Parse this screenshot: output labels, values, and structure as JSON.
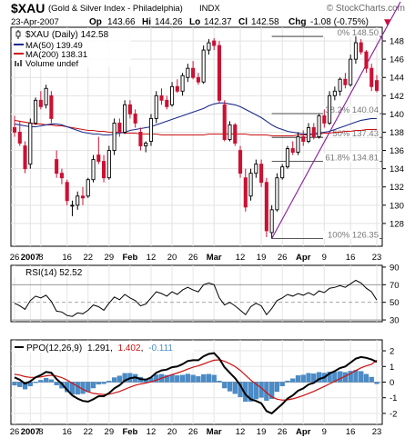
{
  "header": {
    "symbol": "$XAU",
    "name": "(Gold & Silver Index - Philadelphia)",
    "exchange": "INDX",
    "source": "© StockCharts.com",
    "date": "23-Apr-2007",
    "op_label": "Op",
    "op": "143.66",
    "hi_label": "Hi",
    "hi": "144.26",
    "lo_label": "Lo",
    "lo": "142.37",
    "cl_label": "Cl",
    "cl": "142.58",
    "chg_label": "Chg",
    "chg": "-1.08 (-0.75%)",
    "chg_arrow": "▼"
  },
  "legend": {
    "price": "$XAU (Daily) 142.58",
    "ma50": "MA(50) 139.49",
    "ma200": "MA(200) 138.31",
    "volume": "Volume undef"
  },
  "colors": {
    "up": "#000000",
    "down": "#cc1133",
    "ma50": "#1a2a8c",
    "ma200": "#cc1111",
    "fib": "#222222",
    "trend": "#8a1a9a",
    "hist": "#4a8cc8",
    "rsi": "#000000"
  },
  "fibonacci": {
    "levels": [
      {
        "label": "0% 148.50",
        "value": 148.5
      },
      {
        "label": "38.2% 140.04",
        "value": 140.04
      },
      {
        "label": "50% 137.43",
        "value": 137.43
      },
      {
        "label": "61.8% 134.81",
        "value": 134.81
      },
      {
        "label": "100% 126.35",
        "value": 126.35
      }
    ]
  },
  "x_axis": {
    "labels": [
      "26",
      "2007",
      "8",
      "16",
      "22",
      "29",
      "Feb",
      "12",
      "20",
      "26",
      "Mar",
      "12",
      "19",
      "26",
      "Apr",
      "9",
      "16",
      "23"
    ]
  },
  "chart_data": [
    {
      "type": "candlestick",
      "title": "$XAU (Daily)",
      "ylim": [
        125.5,
        149.5
      ],
      "y_ticks": [
        128,
        130,
        132,
        134,
        136,
        138,
        140,
        142,
        144,
        146,
        148
      ],
      "x_ticks": [
        "26",
        "2007",
        "8",
        "16",
        "22",
        "29",
        "Feb",
        "12",
        "20",
        "26",
        "Mar",
        "12",
        "19",
        "26",
        "Apr",
        "9",
        "16",
        "23"
      ],
      "grid": true,
      "legend": "top-left",
      "ohlc": [
        [
          138.5,
          139.8,
          137.5,
          138.0
        ],
        [
          138.0,
          139.2,
          136.5,
          136.8
        ],
        [
          136.5,
          137.0,
          133.5,
          134.0
        ],
        [
          134.5,
          139.5,
          134.0,
          139.0
        ],
        [
          139.0,
          141.8,
          138.8,
          141.5
        ],
        [
          141.5,
          142.5,
          140.5,
          140.8
        ],
        [
          141.0,
          143.2,
          140.6,
          142.8
        ],
        [
          142.0,
          142.5,
          139.0,
          139.5
        ],
        [
          135.0,
          136.0,
          133.0,
          133.5
        ],
        [
          133.5,
          134.0,
          132.3,
          133.0
        ],
        [
          132.5,
          132.8,
          130.0,
          130.5
        ],
        [
          130.0,
          130.5,
          128.8,
          130.0
        ],
        [
          130.0,
          131.5,
          129.5,
          131.0
        ],
        [
          131.0,
          132.0,
          130.0,
          130.8
        ],
        [
          131.0,
          133.0,
          130.8,
          132.8
        ],
        [
          132.8,
          135.5,
          132.5,
          135.0
        ],
        [
          135.5,
          137.5,
          134.5,
          134.8
        ],
        [
          134.8,
          135.5,
          132.5,
          133.0
        ],
        [
          133.0,
          136.5,
          132.8,
          136.0
        ],
        [
          136.0,
          139.5,
          135.5,
          139.0
        ],
        [
          139.0,
          139.5,
          137.5,
          138.0
        ],
        [
          138.0,
          141.5,
          137.8,
          141.0
        ],
        [
          141.0,
          141.5,
          139.5,
          140.0
        ],
        [
          140.0,
          140.5,
          138.5,
          139.0
        ],
        [
          138.0,
          138.5,
          136.0,
          136.5
        ],
        [
          136.5,
          137.0,
          135.8,
          136.8
        ],
        [
          137.0,
          140.0,
          136.5,
          139.5
        ],
        [
          139.5,
          142.5,
          139.0,
          142.0
        ],
        [
          142.0,
          142.8,
          141.0,
          141.5
        ],
        [
          141.5,
          142.0,
          140.5,
          140.8
        ],
        [
          141.0,
          143.5,
          140.8,
          143.0
        ],
        [
          143.0,
          143.8,
          142.3,
          142.5
        ],
        [
          142.5,
          144.5,
          142.0,
          144.2
        ],
        [
          144.0,
          145.5,
          143.5,
          145.0
        ],
        [
          145.0,
          145.8,
          143.8,
          144.0
        ],
        [
          144.0,
          144.5,
          143.2,
          143.5
        ],
        [
          143.5,
          147.5,
          143.3,
          147.0
        ],
        [
          147.0,
          148.2,
          146.5,
          147.8
        ],
        [
          148.0,
          148.3,
          147.0,
          147.5
        ],
        [
          147.5,
          148.0,
          141.2,
          141.5
        ],
        [
          141.0,
          141.5,
          137.0,
          137.2
        ],
        [
          137.2,
          139.2,
          137.0,
          138.8
        ],
        [
          138.8,
          139.0,
          136.5,
          136.8
        ],
        [
          136.0,
          136.5,
          133.0,
          133.5
        ],
        [
          133.0,
          134.0,
          129.3,
          129.8
        ],
        [
          131.0,
          134.0,
          130.5,
          133.5
        ],
        [
          133.5,
          135.0,
          133.0,
          134.5
        ],
        [
          134.5,
          135.0,
          132.0,
          132.5
        ],
        [
          132.5,
          133.0,
          126.5,
          127.2
        ],
        [
          127.0,
          130.0,
          126.35,
          129.5
        ],
        [
          129.5,
          133.5,
          129.3,
          133.0
        ],
        [
          133.0,
          134.5,
          132.8,
          134.2
        ],
        [
          134.2,
          136.5,
          134.0,
          136.2
        ],
        [
          136.2,
          137.0,
          135.5,
          135.8
        ],
        [
          135.8,
          138.0,
          135.5,
          137.5
        ],
        [
          137.5,
          138.2,
          136.5,
          137.0
        ],
        [
          137.0,
          139.0,
          136.8,
          138.5
        ],
        [
          138.5,
          139.0,
          137.2,
          137.5
        ],
        [
          137.5,
          140.0,
          137.3,
          139.8
        ],
        [
          139.8,
          140.5,
          138.5,
          139.0
        ],
        [
          139.0,
          142.5,
          138.8,
          142.0
        ],
        [
          142.0,
          143.0,
          141.5,
          142.5
        ],
        [
          142.5,
          144.0,
          142.0,
          143.8
        ],
        [
          143.8,
          144.5,
          142.8,
          143.2
        ],
        [
          143.2,
          146.5,
          143.0,
          146.0
        ],
        [
          146.0,
          148.5,
          145.5,
          147.8
        ],
        [
          147.8,
          148.2,
          146.5,
          146.8
        ],
        [
          146.8,
          147.0,
          144.5,
          145.0
        ],
        [
          145.0,
          145.5,
          142.5,
          143.0
        ],
        [
          143.66,
          144.26,
          142.37,
          142.58
        ]
      ],
      "ma50": [
        138.9,
        138.8,
        138.7,
        138.6,
        138.6,
        138.7,
        138.8,
        138.9,
        138.9,
        138.8,
        138.6,
        138.4,
        138.2,
        138.0,
        137.9,
        137.8,
        137.8,
        137.7,
        137.7,
        137.8,
        137.9,
        138.0,
        138.2,
        138.3,
        138.4,
        138.5,
        138.6,
        138.8,
        139.0,
        139.2,
        139.4,
        139.6,
        139.8,
        140.0,
        140.2,
        140.4,
        140.6,
        140.9,
        141.1,
        141.2,
        141.2,
        141.1,
        141.0,
        140.8,
        140.5,
        140.2,
        139.9,
        139.6,
        139.2,
        138.8,
        138.5,
        138.3,
        138.1,
        138.0,
        137.9,
        137.8,
        137.8,
        137.8,
        137.9,
        138.0,
        138.1,
        138.3,
        138.5,
        138.7,
        138.9,
        139.1,
        139.3,
        139.4,
        139.5,
        139.49
      ],
      "ma200": [
        139.3,
        139.2,
        139.1,
        139.0,
        138.9,
        138.9,
        138.8,
        138.8,
        138.7,
        138.7,
        138.6,
        138.5,
        138.4,
        138.3,
        138.2,
        138.2,
        138.1,
        138.1,
        138.0,
        138.0,
        138.0,
        137.9,
        137.9,
        137.9,
        137.8,
        137.8,
        137.8,
        137.8,
        137.7,
        137.7,
        137.7,
        137.7,
        137.7,
        137.7,
        137.7,
        137.7,
        137.7,
        137.8,
        137.8,
        137.8,
        137.8,
        137.8,
        137.8,
        137.8,
        137.8,
        137.7,
        137.7,
        137.7,
        137.7,
        137.6,
        137.6,
        137.6,
        137.6,
        137.6,
        137.7,
        137.7,
        137.7,
        137.8,
        137.8,
        137.9,
        137.9,
        138.0,
        138.0,
        138.1,
        138.1,
        138.2,
        138.2,
        138.3,
        138.3,
        138.31
      ]
    },
    {
      "type": "line",
      "title": "RSI(14) 52.52",
      "ylim": [
        28,
        92
      ],
      "y_ticks": [
        90,
        70,
        50,
        30
      ],
      "reference_lines": [
        70,
        50,
        30
      ],
      "values": [
        49,
        46,
        42,
        52,
        57,
        55,
        58,
        51,
        40,
        39,
        35,
        34,
        38,
        37,
        41,
        47,
        45,
        41,
        49,
        56,
        53,
        59,
        55,
        52,
        46,
        48,
        55,
        62,
        60,
        57,
        62,
        59,
        64,
        67,
        64,
        62,
        70,
        72,
        70,
        55,
        47,
        50,
        46,
        41,
        36,
        45,
        49,
        46,
        36,
        43,
        52,
        55,
        59,
        57,
        60,
        58,
        61,
        58,
        63,
        61,
        66,
        67,
        69,
        67,
        71,
        75,
        72,
        66,
        62,
        52.52
      ]
    },
    {
      "type": "line",
      "title": "PPO(12,26,9)",
      "ylim": [
        -2.7,
        2.7
      ],
      "y_ticks": [
        2,
        1,
        0,
        -1,
        -2
      ],
      "series": [
        {
          "name": "1.291",
          "values": [
            0.3,
            0.15,
            -0.1,
            0.05,
            0.3,
            0.45,
            0.65,
            0.6,
            0.2,
            -0.1,
            -0.5,
            -0.85,
            -1.05,
            -1.2,
            -1.25,
            -1.1,
            -0.9,
            -0.9,
            -0.7,
            -0.4,
            -0.2,
            0.1,
            0.25,
            0.3,
            0.2,
            0.15,
            0.3,
            0.6,
            0.75,
            0.8,
            0.95,
            1.0,
            1.15,
            1.35,
            1.4,
            1.4,
            1.65,
            1.8,
            1.85,
            1.5,
            0.95,
            0.6,
            0.25,
            -0.2,
            -0.8,
            -1.1,
            -1.2,
            -1.35,
            -1.85,
            -2.0,
            -1.7,
            -1.4,
            -1.05,
            -0.85,
            -0.55,
            -0.4,
            -0.15,
            -0.05,
            0.2,
            0.3,
            0.55,
            0.7,
            0.9,
            1.0,
            1.25,
            1.5,
            1.6,
            1.55,
            1.45,
            1.291
          ]
        },
        {
          "name": "1.402",
          "values": [
            0.5,
            0.45,
            0.35,
            0.3,
            0.3,
            0.33,
            0.4,
            0.44,
            0.39,
            0.29,
            0.13,
            -0.07,
            -0.27,
            -0.46,
            -0.62,
            -0.72,
            -0.76,
            -0.79,
            -0.77,
            -0.69,
            -0.6,
            -0.46,
            -0.32,
            -0.2,
            -0.12,
            -0.06,
            0.02,
            0.13,
            0.25,
            0.36,
            0.48,
            0.58,
            0.7,
            0.83,
            0.95,
            1.04,
            1.16,
            1.29,
            1.4,
            1.42,
            1.33,
            1.18,
            0.99,
            0.75,
            0.44,
            0.13,
            -0.12,
            -0.37,
            -0.67,
            -0.94,
            -1.09,
            -1.15,
            -1.13,
            -1.07,
            -0.97,
            -0.86,
            -0.72,
            -0.59,
            -0.43,
            -0.28,
            -0.11,
            0.05,
            0.22,
            0.38,
            0.55,
            0.74,
            0.91,
            1.04,
            1.13,
            1.402
          ]
        },
        {
          "name": "-0.111",
          "values": [
            -0.2,
            -0.3,
            -0.45,
            -0.25,
            0.0,
            0.12,
            0.25,
            0.16,
            -0.19,
            -0.39,
            -0.63,
            -0.78,
            -0.78,
            -0.74,
            -0.63,
            -0.38,
            -0.14,
            -0.11,
            0.07,
            0.29,
            0.4,
            0.56,
            0.57,
            0.5,
            0.32,
            0.21,
            0.28,
            0.47,
            0.5,
            0.44,
            0.47,
            0.42,
            0.45,
            0.52,
            0.45,
            0.36,
            0.49,
            0.51,
            0.45,
            0.08,
            -0.38,
            -0.58,
            -0.74,
            -0.95,
            -1.24,
            -1.23,
            -1.08,
            -0.98,
            -1.18,
            -1.06,
            -0.61,
            -0.25,
            0.08,
            0.22,
            0.42,
            0.46,
            0.57,
            0.54,
            0.63,
            0.58,
            0.66,
            0.65,
            0.68,
            0.62,
            0.7,
            0.76,
            0.69,
            0.51,
            0.32,
            -0.111
          ]
        }
      ]
    }
  ]
}
